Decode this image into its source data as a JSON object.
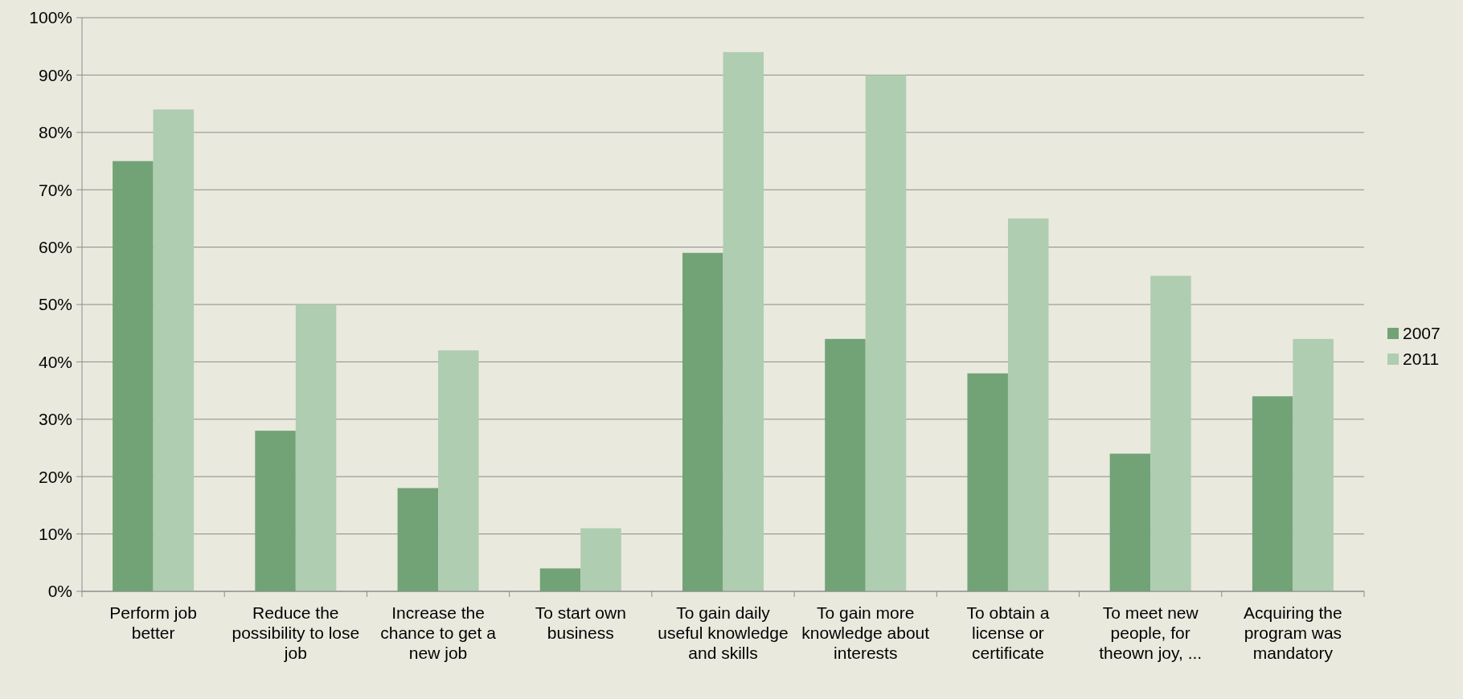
{
  "chart_data": {
    "type": "bar",
    "categories": [
      "Perform job better",
      "Reduce the possibility to lose job",
      "Increase the chance to get a new job",
      "To start own business",
      "To gain daily useful knowledge and skills",
      "To gain more knowledge about interests",
      "To obtain a license or certificate",
      "To meet new people, for theown joy, ...",
      "Acquiring the program was mandatory"
    ],
    "series": [
      {
        "name": "2007",
        "color": "#71a376",
        "values": [
          75,
          28,
          18,
          4,
          59,
          44,
          38,
          24,
          34
        ]
      },
      {
        "name": "2011",
        "color": "#afcdb0",
        "values": [
          84,
          50,
          42,
          11,
          94,
          90,
          65,
          55,
          44
        ]
      }
    ],
    "ylim": [
      0,
      100
    ],
    "yticks": [
      {
        "value": 0,
        "label": "0%"
      },
      {
        "value": 10,
        "label": "10%"
      },
      {
        "value": 20,
        "label": "20%"
      },
      {
        "value": 30,
        "label": "30%"
      },
      {
        "value": 40,
        "label": "40%"
      },
      {
        "value": 50,
        "label": "50%"
      },
      {
        "value": 60,
        "label": "60%"
      },
      {
        "value": 70,
        "label": "70%"
      },
      {
        "value": 80,
        "label": "80%"
      },
      {
        "value": 90,
        "label": "90%"
      },
      {
        "value": 100,
        "label": "100%"
      }
    ],
    "grid": "y",
    "legend": "right"
  }
}
